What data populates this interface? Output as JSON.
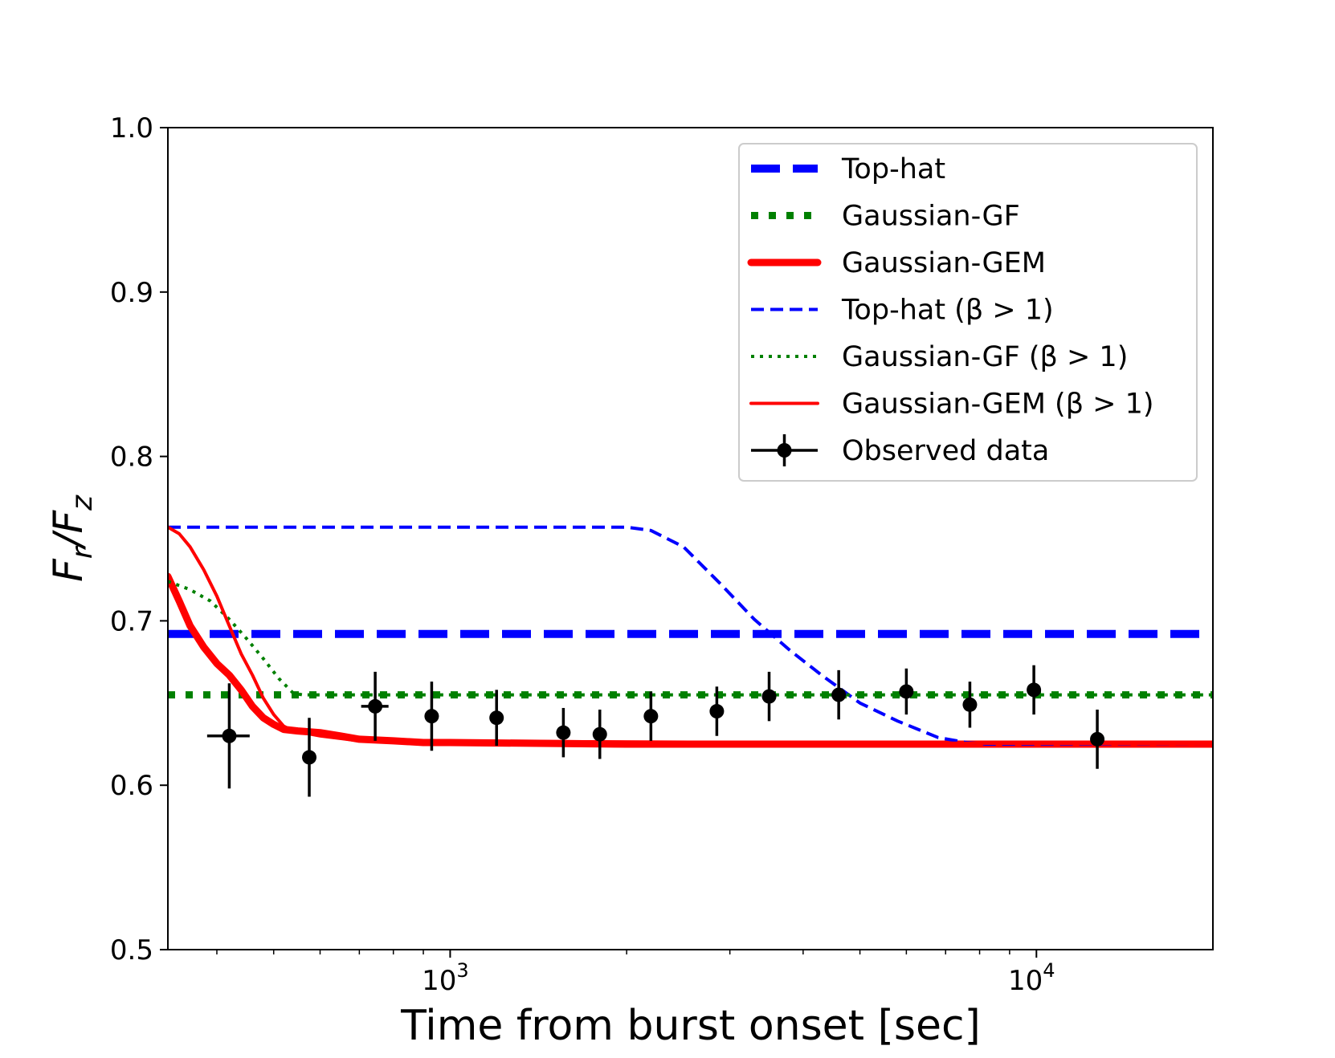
{
  "chart_data": {
    "type": "line",
    "title": "",
    "xlabel": "Time from burst onset [sec]",
    "ylabel": {
      "F": "F",
      "r": "r",
      "slash": "/",
      "F2": "F",
      "z": "z"
    },
    "xscale": "log",
    "xlim": [
      330,
      20000
    ],
    "ylim": [
      0.5,
      1.0
    ],
    "x_ticks": [
      {
        "value": 1000,
        "base": "10",
        "exp": "3"
      },
      {
        "value": 10000,
        "base": "10",
        "exp": "4"
      }
    ],
    "y_ticks": [
      {
        "value": 0.5,
        "label": "0.5"
      },
      {
        "value": 0.6,
        "label": "0.6"
      },
      {
        "value": 0.7,
        "label": "0.7"
      },
      {
        "value": 0.8,
        "label": "0.8"
      },
      {
        "value": 0.9,
        "label": "0.9"
      },
      {
        "value": 1.0,
        "label": "1.0"
      }
    ],
    "legend_position": "top-right",
    "series": [
      {
        "name": "Top-hat",
        "color": "#0000ff",
        "style": "dashed-thick",
        "x": [
          330,
          20000
        ],
        "y": [
          0.692,
          0.692
        ]
      },
      {
        "name": "Gaussian-GF",
        "color": "#008000",
        "style": "dotted-thick",
        "x": [
          330,
          20000
        ],
        "y": [
          0.655,
          0.655
        ]
      },
      {
        "name": "Gaussian-GEM",
        "color": "#ff0000",
        "style": "solid-thick",
        "x": [
          330,
          345,
          360,
          380,
          400,
          420,
          440,
          460,
          480,
          500,
          520,
          550,
          600,
          650,
          700,
          800,
          900,
          1000,
          2000,
          5000,
          20000
        ],
        "y": [
          0.727,
          0.712,
          0.697,
          0.684,
          0.674,
          0.667,
          0.658,
          0.648,
          0.641,
          0.637,
          0.634,
          0.633,
          0.632,
          0.63,
          0.628,
          0.627,
          0.626,
          0.626,
          0.625,
          0.625,
          0.625
        ]
      },
      {
        "name": "Top-hat (β > 1)",
        "color": "#0000ff",
        "style": "dashed-thin",
        "x": [
          330,
          2000,
          2200,
          2500,
          2900,
          3300,
          3800,
          4300,
          5000,
          5800,
          6800,
          7600,
          8200,
          20000
        ],
        "y": [
          0.757,
          0.757,
          0.755,
          0.745,
          0.722,
          0.701,
          0.682,
          0.667,
          0.65,
          0.639,
          0.629,
          0.626,
          0.625,
          0.625
        ]
      },
      {
        "name": "Gaussian-GF (β > 1)",
        "color": "#008000",
        "style": "dotted-thin",
        "x": [
          330,
          360,
          390,
          420,
          450,
          480,
          510,
          540,
          560,
          20000
        ],
        "y": [
          0.724,
          0.719,
          0.712,
          0.701,
          0.689,
          0.677,
          0.665,
          0.656,
          0.655,
          0.655
        ]
      },
      {
        "name": "Gaussian-GEM (β > 1)",
        "color": "#ff0000",
        "style": "solid-thin",
        "x": [
          330,
          345,
          360,
          380,
          400,
          420,
          440,
          460,
          480,
          500,
          520,
          540,
          560,
          600,
          700,
          20000
        ],
        "y": [
          0.757,
          0.753,
          0.745,
          0.731,
          0.715,
          0.697,
          0.68,
          0.667,
          0.653,
          0.643,
          0.636,
          0.633,
          0.632,
          0.63,
          0.627,
          0.625
        ]
      }
    ],
    "observed": {
      "name": "Observed data",
      "color": "#000000",
      "points": [
        {
          "x": 420,
          "y": 0.63,
          "yerr": 0.032,
          "xerr": [
            35,
            35
          ]
        },
        {
          "x": 575,
          "y": 0.617,
          "yerr": 0.024
        },
        {
          "x": 745,
          "y": 0.648,
          "yerr": 0.021,
          "xerr": [
            40,
            40
          ]
        },
        {
          "x": 930,
          "y": 0.642,
          "yerr": 0.021
        },
        {
          "x": 1200,
          "y": 0.641,
          "yerr": 0.017
        },
        {
          "x": 1560,
          "y": 0.632,
          "yerr": 0.015
        },
        {
          "x": 1800,
          "y": 0.631,
          "yerr": 0.015
        },
        {
          "x": 2200,
          "y": 0.642,
          "yerr": 0.015
        },
        {
          "x": 2850,
          "y": 0.645,
          "yerr": 0.015
        },
        {
          "x": 3500,
          "y": 0.654,
          "yerr": 0.015
        },
        {
          "x": 4600,
          "y": 0.655,
          "yerr": 0.015
        },
        {
          "x": 6000,
          "y": 0.657,
          "yerr": 0.014
        },
        {
          "x": 7700,
          "y": 0.649,
          "yerr": 0.014
        },
        {
          "x": 9900,
          "y": 0.658,
          "yerr": 0.015
        },
        {
          "x": 12700,
          "y": 0.628,
          "yerr": 0.018
        }
      ]
    }
  }
}
